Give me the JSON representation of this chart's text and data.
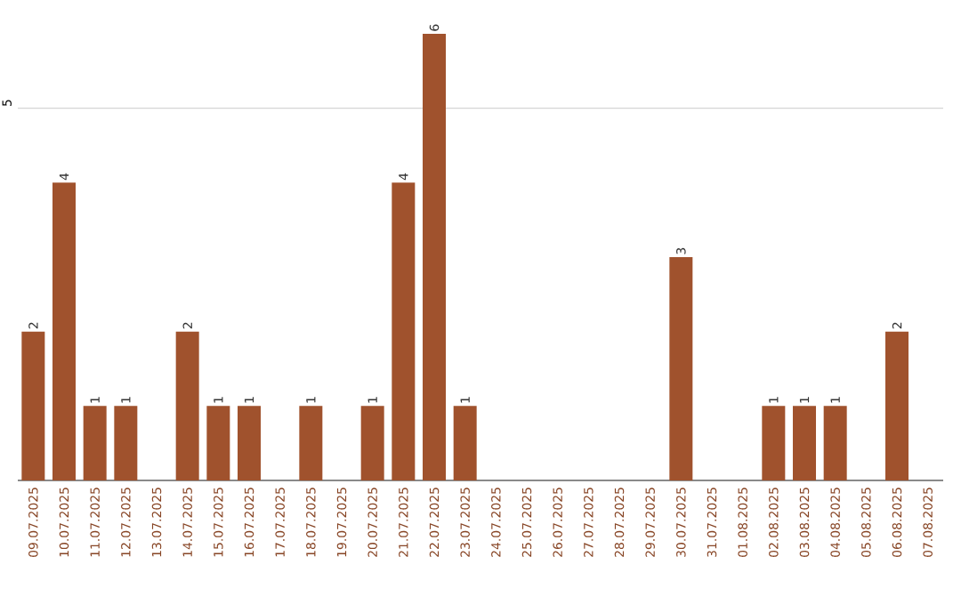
{
  "chart_data": {
    "type": "bar",
    "categories": [
      "09.07.2025",
      "10.07.2025",
      "11.07.2025",
      "12.07.2025",
      "13.07.2025",
      "14.07.2025",
      "15.07.2025",
      "16.07.2025",
      "17.07.2025",
      "18.07.2025",
      "19.07.2025",
      "20.07.2025",
      "21.07.2025",
      "22.07.2025",
      "23.07.2025",
      "24.07.2025",
      "25.07.2025",
      "26.07.2025",
      "27.07.2025",
      "28.07.2025",
      "29.07.2025",
      "30.07.2025",
      "31.07.2025",
      "01.08.2025",
      "02.08.2025",
      "03.08.2025",
      "04.08.2025",
      "05.08.2025",
      "06.08.2025",
      "07.08.2025"
    ],
    "values": [
      2,
      4,
      1,
      1,
      0,
      2,
      1,
      1,
      0,
      1,
      0,
      1,
      4,
      6,
      1,
      0,
      0,
      0,
      0,
      0,
      0,
      3,
      0,
      0,
      1,
      1,
      1,
      0,
      2,
      0
    ],
    "value_labels": [
      "2",
      "4",
      "1",
      "1",
      null,
      "2",
      "1",
      "1",
      null,
      "1",
      null,
      "1",
      "4",
      "6",
      "1",
      null,
      null,
      null,
      null,
      null,
      null,
      "3",
      null,
      null,
      "1",
      "1",
      "1",
      null,
      "2",
      null
    ],
    "color": "#a0522d",
    "ylim": [
      0,
      6
    ],
    "yticks": [
      {
        "value": 0,
        "label": null
      },
      5
    ],
    "grid": "y"
  }
}
